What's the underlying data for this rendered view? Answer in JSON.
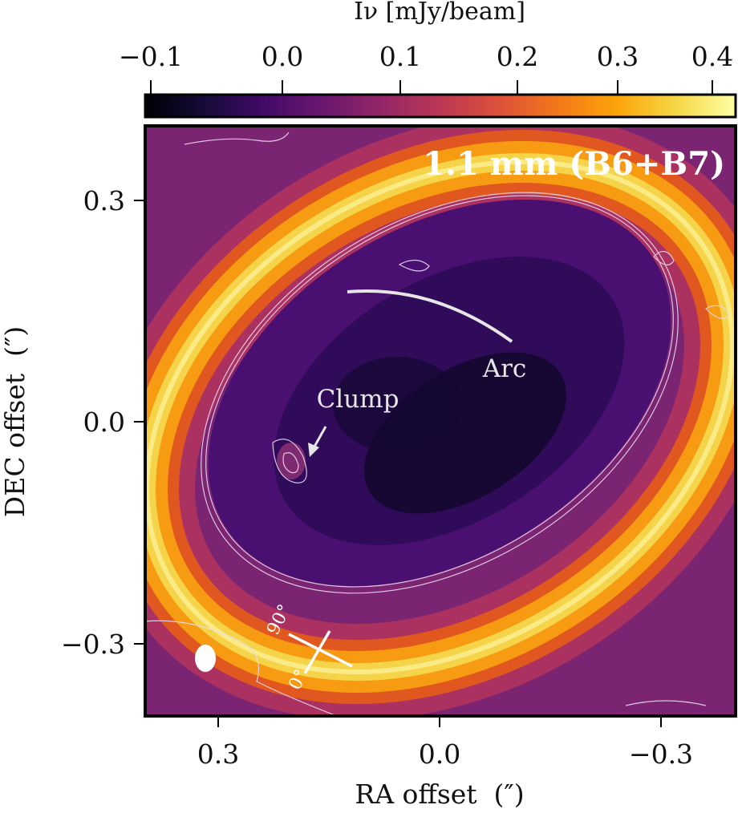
{
  "chart_data": {
    "type": "heatmap",
    "title": "1.1 mm (B6+B7)",
    "colorbar": {
      "label": "Iν [mJy/beam]",
      "ticks": [
        -0.1,
        0.0,
        0.1,
        0.2,
        0.3,
        0.4
      ],
      "tick_labels": [
        "−0.1",
        "0.0",
        "0.1",
        "0.2",
        "0.3",
        "0.4"
      ],
      "range": [
        -0.11,
        0.43
      ],
      "colormap": "inferno",
      "orientation": "horizontal",
      "placement": "top"
    },
    "xlabel": "RA offset  (″)",
    "ylabel": "DEC offset  (″)",
    "xlim": [
      0.4,
      -0.4
    ],
    "ylim": [
      -0.4,
      0.4
    ],
    "xticks": [
      0.3,
      0.0,
      -0.3
    ],
    "xtick_labels": [
      "0.3",
      "0.0",
      "−0.3"
    ],
    "yticks": [
      0.3,
      0.0,
      -0.3
    ],
    "ytick_labels": [
      "0.3",
      "0.0",
      "−0.3"
    ],
    "ring": {
      "center": [
        0.0,
        0.02
      ],
      "semi_major": 0.42,
      "semi_minor": 0.3,
      "position_angle_deg": -32,
      "peak_intensity": 0.4
    },
    "cavity_intensity": 0.02,
    "annotations": [
      {
        "text": "Arc",
        "kind": "curve",
        "x": -0.15,
        "y": 0.07
      },
      {
        "text": "Clump",
        "kind": "arrow",
        "x": 0.18,
        "y": -0.05
      },
      {
        "text": "90°",
        "kind": "axis-cross-label"
      },
      {
        "text": "0°",
        "kind": "axis-cross-label"
      }
    ],
    "beam": {
      "x": 0.315,
      "y": -0.32,
      "shape": "ellipse"
    }
  },
  "colors": {
    "contour": "#e8d8f0",
    "annotation": "#e6e6e6",
    "frame": "#000000"
  }
}
